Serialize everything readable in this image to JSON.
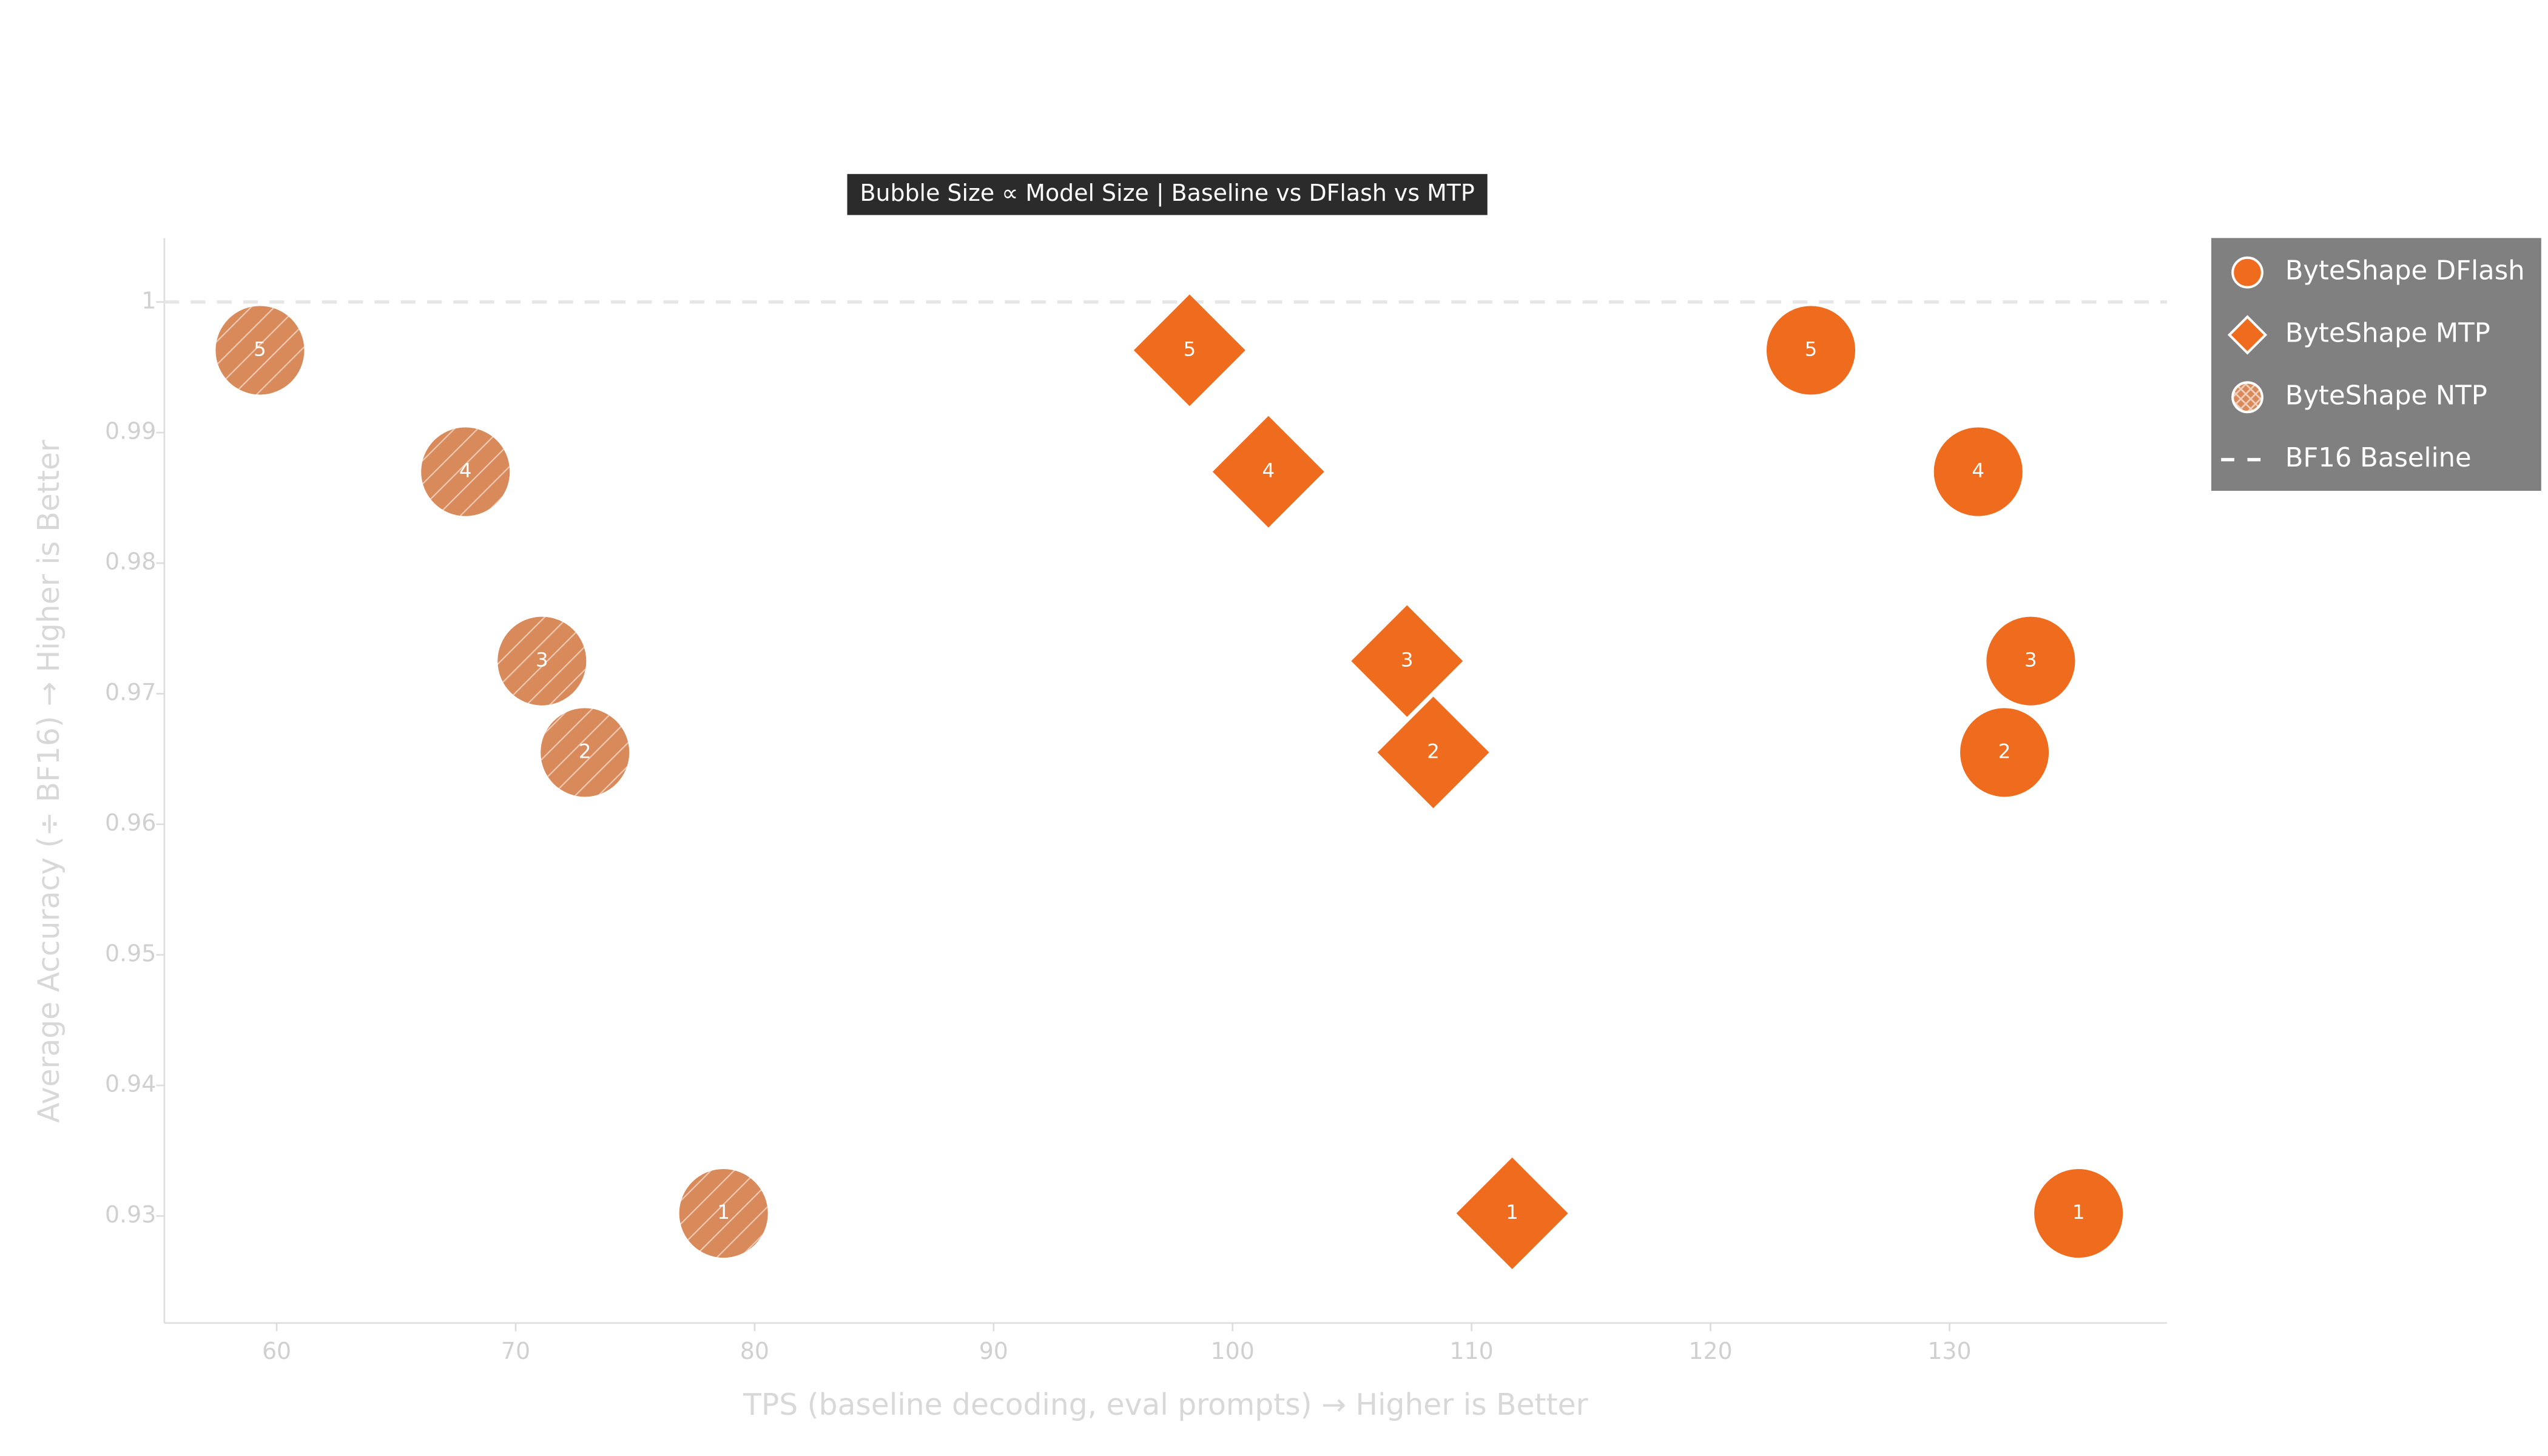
{
  "chart_data": {
    "type": "scatter",
    "title": "Bubble Size ∝ Model Size | Baseline vs DFlash vs MTP",
    "x_label": "TPS (baseline decoding, eval prompts) → Higher is Better",
    "y_label": "Average Accuracy (÷ BF16) → Higher is Better",
    "xlim": [
      55.3,
      139.1
    ],
    "ylim": [
      0.9218,
      1.0049
    ],
    "xticks": [
      60,
      70,
      80,
      90,
      100,
      110,
      120,
      130
    ],
    "yticks": [
      0.93,
      0.94,
      0.95,
      0.96,
      0.97,
      0.98,
      0.99,
      1
    ],
    "baseline": {
      "name": "BF16 Baseline",
      "value": 1
    },
    "legend": "outside-top-right",
    "series": [
      {
        "name": "ByteShape DFlash",
        "color": "#ef6c1e",
        "marker": "circle",
        "hatch": false,
        "x": [
          124.2,
          131.2,
          133.4,
          132.3,
          135.4
        ],
        "values": [
          0.9963,
          0.987,
          0.9725,
          0.9655,
          0.9302
        ],
        "labels": [
          "5",
          "4",
          "3",
          "2",
          "1"
        ]
      },
      {
        "name": "ByteShape MTP",
        "color": "#ef6c1e",
        "marker": "diamond",
        "hatch": false,
        "x": [
          98.2,
          101.5,
          107.3,
          108.4,
          111.7
        ],
        "values": [
          0.9963,
          0.987,
          0.9725,
          0.9655,
          0.9302
        ],
        "labels": [
          "5",
          "4",
          "3",
          "2",
          "1"
        ]
      },
      {
        "name": "ByteShape NTP",
        "color": "#d98a5a",
        "marker": "circle",
        "hatch": true,
        "x": [
          59.3,
          67.9,
          71.1,
          72.9,
          78.7
        ],
        "values": [
          0.9963,
          0.987,
          0.9725,
          0.9655,
          0.9302
        ],
        "labels": [
          "5",
          "4",
          "3",
          "2",
          "1"
        ]
      }
    ]
  }
}
